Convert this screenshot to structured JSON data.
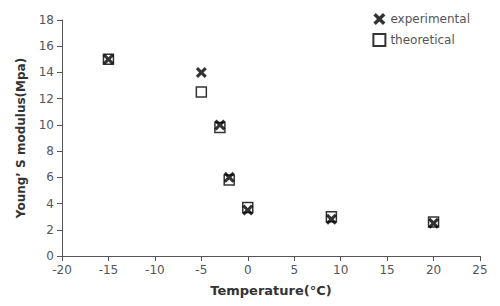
{
  "chart_data": {
    "type": "scatter",
    "xlabel": "Temperature(°C)",
    "ylabel": "Young’ S modulus(Mpa)",
    "x": [
      -15,
      -5,
      -3,
      -2,
      0,
      9,
      20
    ],
    "series": [
      {
        "name": "experimental",
        "color": "black",
        "marker": "x",
        "values": [
          15.0,
          14.0,
          10.0,
          6.0,
          3.5,
          2.8,
          2.5
        ]
      },
      {
        "name": "theoretical",
        "color": "black",
        "marker": "square",
        "values": [
          15.0,
          12.5,
          9.8,
          5.8,
          3.7,
          3.0,
          2.6
        ]
      }
    ],
    "xlim": [
      -20,
      25
    ],
    "ylim": [
      0,
      18
    ],
    "xticks": [
      -20,
      -15,
      -10,
      -5,
      0,
      5,
      10,
      15,
      20,
      25
    ],
    "yticks": [
      0,
      2,
      4,
      6,
      8,
      10,
      12,
      14,
      16,
      18
    ],
    "grid": false,
    "legend": "upper right"
  }
}
